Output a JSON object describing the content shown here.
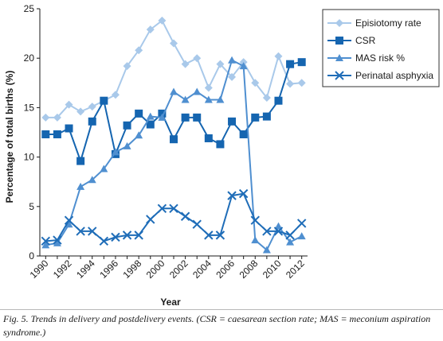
{
  "chart_data": {
    "type": "line",
    "title": "",
    "xlabel": "Year",
    "ylabel": "Percentage of total births (%)",
    "xlim": [
      1989.5,
      2012.5
    ],
    "ylim": [
      0,
      25
    ],
    "x_ticks": [
      "1990",
      "1992",
      "1994",
      "1996",
      "1998",
      "2000",
      "2002",
      "2004",
      "2006",
      "2008",
      "2010",
      "2012"
    ],
    "y_ticks": [
      "0",
      "5",
      "10",
      "15",
      "20",
      "25"
    ],
    "legend_position": "top-right",
    "x": [
      1990,
      1991,
      1992,
      1993,
      1994,
      1995,
      1996,
      1997,
      1998,
      1999,
      2000,
      2001,
      2002,
      2003,
      2004,
      2005,
      2006,
      2007,
      2008,
      2009,
      2010,
      2011,
      2012
    ],
    "series": [
      {
        "name": "Episiotomy rate",
        "color": "#a9c9ea",
        "marker": "diamond",
        "values": [
          14.0,
          14.0,
          15.3,
          14.6,
          15.1,
          15.7,
          16.3,
          19.2,
          20.8,
          22.9,
          23.8,
          21.5,
          19.4,
          20.0,
          17.0,
          19.4,
          18.1,
          19.6,
          17.5,
          16.0,
          20.2,
          17.4,
          17.5
        ]
      },
      {
        "name": "CSR",
        "color": "#1565b0",
        "marker": "square",
        "values": [
          12.3,
          12.3,
          12.9,
          9.6,
          13.6,
          15.7,
          10.3,
          13.2,
          14.4,
          13.3,
          14.4,
          11.8,
          14.0,
          14.0,
          11.9,
          11.3,
          13.6,
          12.3,
          14.0,
          14.1,
          15.7,
          19.4,
          19.6
        ]
      },
      {
        "name": "MAS risk %",
        "color": "#4f8fd0",
        "marker": "triangle",
        "values": [
          1.1,
          1.3,
          3.2,
          7.0,
          7.7,
          8.8,
          10.5,
          11.1,
          12.2,
          14.1,
          14.0,
          16.6,
          15.8,
          16.6,
          15.8,
          15.8,
          19.8,
          19.2,
          1.6,
          0.6,
          3.0,
          1.4,
          2.0
        ]
      },
      {
        "name": "Perinatal asphyxia",
        "color": "#1f6db8",
        "marker": "x",
        "values": [
          1.5,
          1.6,
          3.6,
          2.5,
          2.5,
          1.5,
          1.9,
          2.1,
          2.1,
          3.7,
          4.8,
          4.8,
          4.0,
          3.2,
          2.1,
          2.1,
          6.1,
          6.3,
          3.6,
          2.5,
          2.5,
          2.1,
          3.3
        ]
      }
    ]
  },
  "caption": {
    "text": "Fig. 5. Trends in delivery and postdelivery events. (CSR = caesarean section rate; MAS = meconium aspiration syndrome.)"
  }
}
